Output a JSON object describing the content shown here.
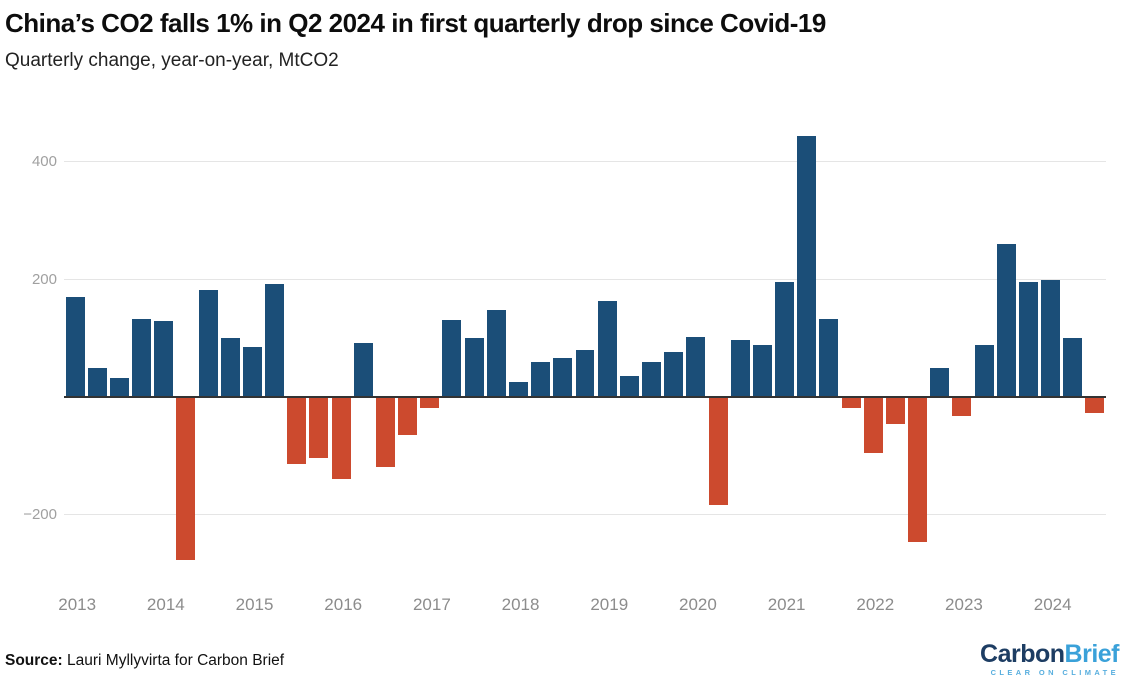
{
  "header": {
    "title": "China’s CO2 falls 1% in Q2 2024 in first quarterly drop since Covid-19",
    "subtitle": "Quarterly change, year-on-year, MtCO2"
  },
  "footer": {
    "source_label": "Source:",
    "source_text": " Lauri Myllyvirta for Carbon Brief",
    "logo_carbon": "Carbon",
    "logo_brief": "Brief",
    "logo_tagline": "CLEAR ON CLIMATE"
  },
  "chart_data": {
    "type": "bar",
    "title": "China’s CO2 falls 1% in Q2 2024 in first quarterly drop since Covid-19",
    "subtitle": "Quarterly change, year-on-year, MtCO2",
    "units": "MtCO2",
    "x": [
      "2012 Q4",
      "2013 Q1",
      "2013 Q2",
      "2013 Q3",
      "2013 Q4",
      "2014 Q1",
      "2014 Q2",
      "2014 Q3",
      "2014 Q4",
      "2015 Q1",
      "2015 Q2",
      "2015 Q3",
      "2015 Q4",
      "2016 Q1",
      "2016 Q2",
      "2016 Q3",
      "2016 Q4",
      "2017 Q1",
      "2017 Q2",
      "2017 Q3",
      "2017 Q4",
      "2018 Q1",
      "2018 Q2",
      "2018 Q3",
      "2018 Q4",
      "2019 Q1",
      "2019 Q2",
      "2019 Q3",
      "2019 Q4",
      "2020 Q1",
      "2020 Q2",
      "2020 Q3",
      "2020 Q4",
      "2021 Q1",
      "2021 Q2",
      "2021 Q3",
      "2021 Q4",
      "2022 Q1",
      "2022 Q2",
      "2022 Q3",
      "2022 Q4",
      "2023 Q1",
      "2023 Q2",
      "2023 Q3",
      "2023 Q4",
      "2024 Q1",
      "2024 Q2"
    ],
    "values": [
      170,
      50,
      33,
      132,
      129,
      -277,
      182,
      100,
      85,
      192,
      -113,
      -104,
      -140,
      91,
      -118,
      -65,
      -18,
      131,
      101,
      147,
      26,
      60,
      67,
      80,
      163,
      35,
      59,
      76,
      102,
      -184,
      96,
      88,
      196,
      443,
      132,
      -19,
      -95,
      -45,
      -246,
      50,
      -33,
      89,
      260,
      195,
      198,
      101,
      -27
    ],
    "year_labels": [
      "2013",
      "2014",
      "2015",
      "2016",
      "2017",
      "2018",
      "2019",
      "2020",
      "2021",
      "2022",
      "2023",
      "2024"
    ],
    "yticks": [
      {
        "value": 400,
        "label": "400"
      },
      {
        "value": 200,
        "label": "200"
      },
      {
        "value": -200,
        "label": "−200"
      }
    ],
    "ylim": [
      -300,
      470
    ],
    "grid": true,
    "legend": "none",
    "colors": {
      "positive": "#1b4e78",
      "negative": "#cc4a2e",
      "zero_axis": "#333333",
      "gridline": "#e5e5e5",
      "tick_text": "#a0a0a0"
    }
  }
}
